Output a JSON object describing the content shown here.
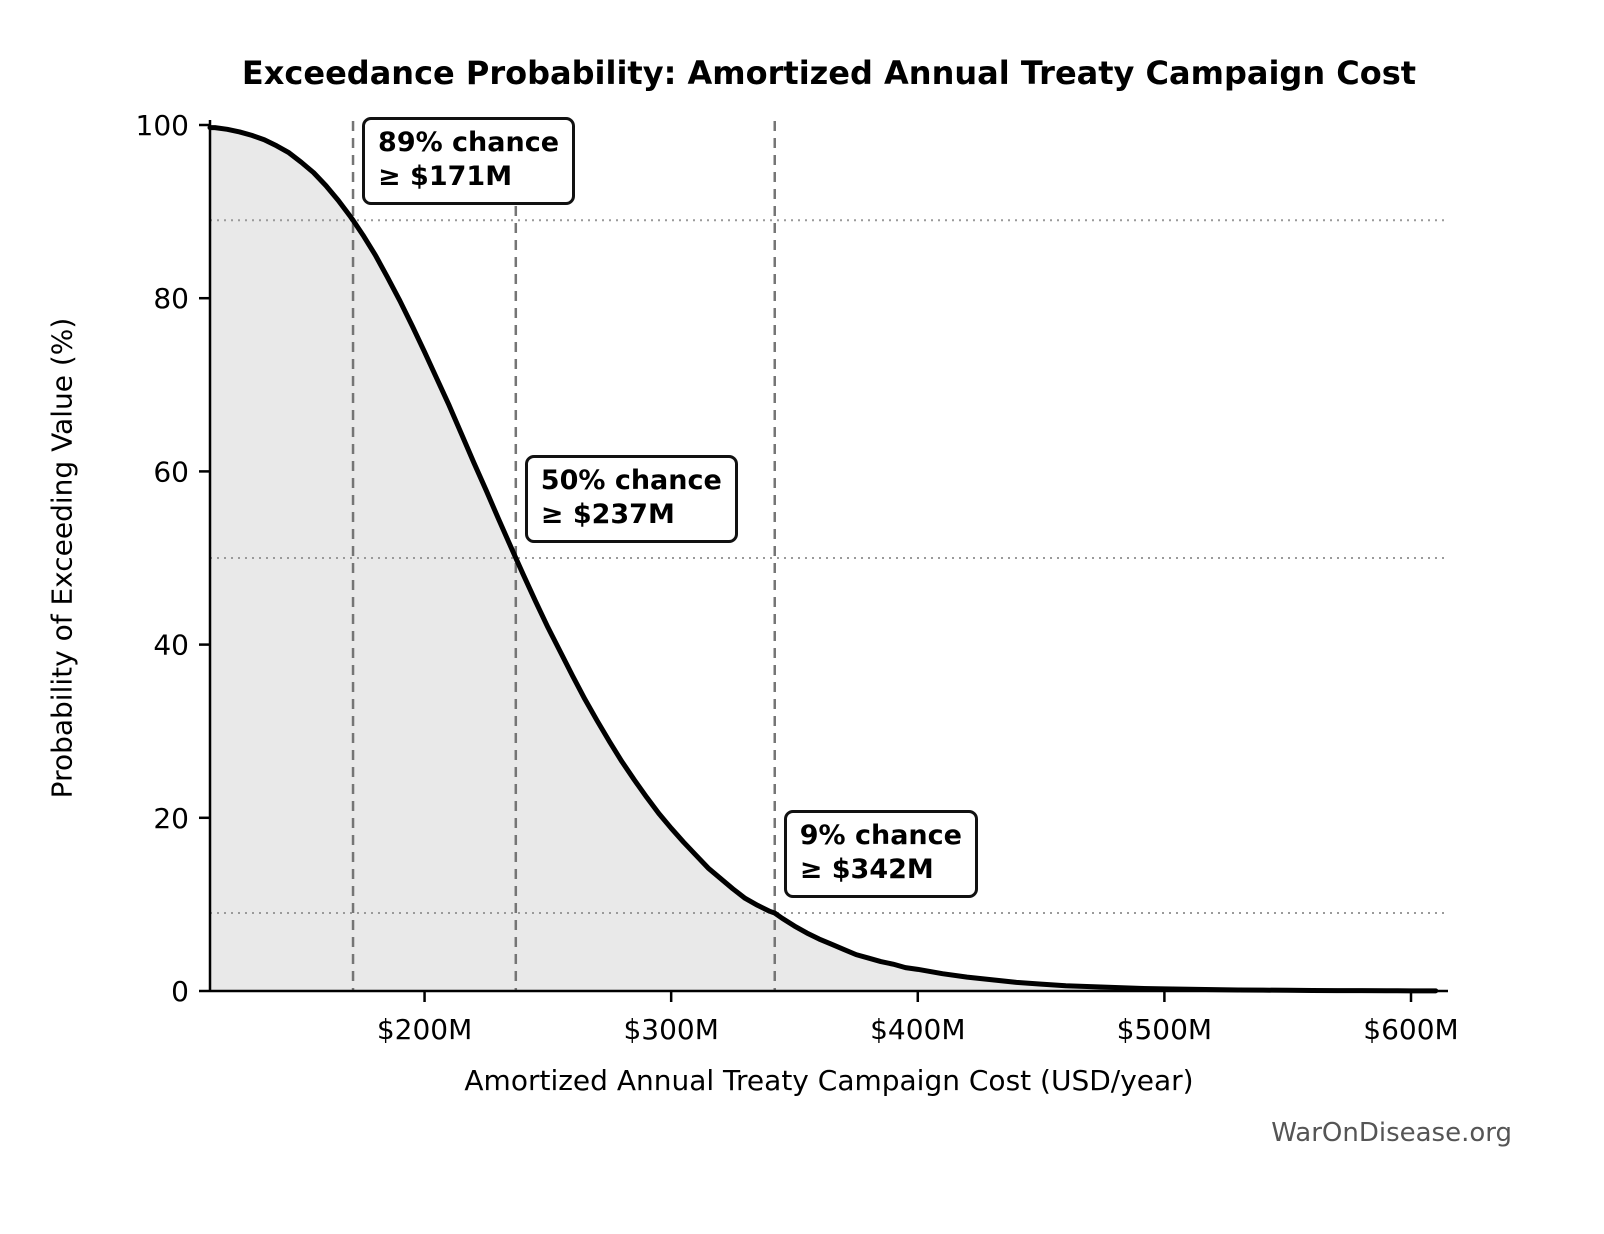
{
  "page": {
    "watermark": "WarOnDisease.org"
  },
  "chart_data": {
    "type": "line",
    "title": "Exceedance Probability: Amortized Annual Treaty Campaign Cost",
    "xlabel": "Amortized Annual Treaty Campaign Cost (USD/year)",
    "ylabel": "Probability of Exceeding Value (%)",
    "xlim": [
      113,
      615
    ],
    "ylim": [
      0,
      100
    ],
    "grid_on": true,
    "legend": null,
    "x_ticks": [
      {
        "v": 200,
        "label": "$200M"
      },
      {
        "v": 300,
        "label": "$300M"
      },
      {
        "v": 400,
        "label": "$400M"
      },
      {
        "v": 500,
        "label": "$500M"
      },
      {
        "v": 600,
        "label": "$600M"
      }
    ],
    "y_ticks": [
      {
        "v": 0,
        "label": "0"
      },
      {
        "v": 20,
        "label": "20"
      },
      {
        "v": 40,
        "label": "40"
      },
      {
        "v": 60,
        "label": "60"
      },
      {
        "v": 80,
        "label": "80"
      },
      {
        "v": 100,
        "label": "100"
      }
    ],
    "grid": {
      "h_dotted_at": [
        89,
        50,
        9
      ],
      "v_dashed_at": [
        171,
        237,
        342
      ]
    },
    "series": [
      {
        "name": "exceedance_curve",
        "color": "#000000",
        "fill_color": "#e9e9e9",
        "x": [
          113,
          115,
          120,
          125,
          130,
          135,
          140,
          145,
          150,
          155,
          160,
          165,
          170,
          171,
          175,
          180,
          185,
          190,
          195,
          200,
          205,
          210,
          215,
          220,
          225,
          230,
          237,
          240,
          245,
          250,
          255,
          260,
          265,
          270,
          275,
          280,
          285,
          290,
          295,
          300,
          305,
          310,
          315,
          320,
          325,
          330,
          335,
          340,
          342,
          345,
          350,
          355,
          360,
          365,
          370,
          375,
          380,
          385,
          390,
          395,
          400,
          410,
          420,
          430,
          440,
          450,
          460,
          470,
          480,
          490,
          500,
          510,
          520,
          530,
          540,
          550,
          560,
          570,
          580,
          590,
          600,
          610
        ],
        "y": [
          99.7,
          99.7,
          99.5,
          99.2,
          98.8,
          98.3,
          97.6,
          96.8,
          95.7,
          94.5,
          93.0,
          91.3,
          89.4,
          89.0,
          87.3,
          85.0,
          82.4,
          79.7,
          76.8,
          73.8,
          70.7,
          67.6,
          64.3,
          61.0,
          57.8,
          54.5,
          50.0,
          48.1,
          45.0,
          42.0,
          39.2,
          36.4,
          33.7,
          31.2,
          28.8,
          26.5,
          24.4,
          22.4,
          20.5,
          18.8,
          17.2,
          15.7,
          14.2,
          13.0,
          11.8,
          10.7,
          9.9,
          9.2,
          9.0,
          8.4,
          7.5,
          6.7,
          6.0,
          5.4,
          4.8,
          4.2,
          3.8,
          3.4,
          3.1,
          2.7,
          2.5,
          2.0,
          1.6,
          1.3,
          1.0,
          0.8,
          0.6,
          0.5,
          0.4,
          0.3,
          0.25,
          0.2,
          0.16,
          0.12,
          0.1,
          0.08,
          0.06,
          0.05,
          0.04,
          0.03,
          0.02,
          0.02
        ]
      }
    ],
    "annotations": [
      {
        "line1": "89% chance",
        "line2": "≥ $171M",
        "x": 171,
        "p": 89
      },
      {
        "line1": "50% chance",
        "line2": "≥ $237M",
        "x": 237,
        "p": 50
      },
      {
        "line1": "9% chance",
        "line2": "≥ $342M",
        "x": 342,
        "p": 9
      }
    ]
  }
}
